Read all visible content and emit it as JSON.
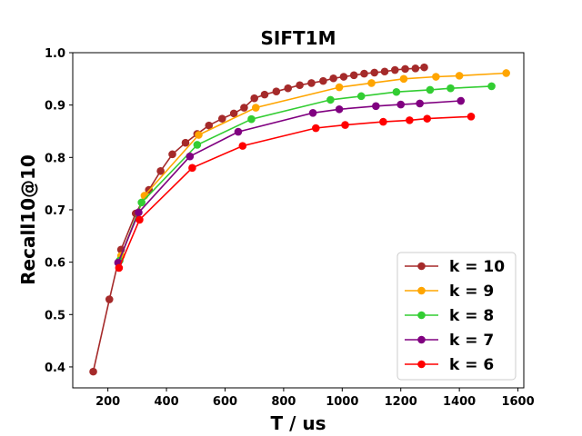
{
  "chart_data": {
    "type": "line",
    "title": "SIFT1M",
    "xlabel": "T / us",
    "ylabel": "Recall10@10",
    "xlim": [
      80,
      1620
    ],
    "ylim": [
      0.36,
      1.0
    ],
    "xticks": [
      200,
      400,
      600,
      800,
      1000,
      1200,
      1400,
      1600
    ],
    "yticks": [
      0.4,
      0.5,
      0.6,
      0.7,
      0.8,
      0.9,
      1.0
    ],
    "xtick_labels": [
      "200",
      "400",
      "600",
      "800",
      "1000",
      "1200",
      "1400",
      "1600"
    ],
    "ytick_labels": [
      "0.4",
      "0.5",
      "0.6",
      "0.7",
      "0.8",
      "0.9",
      "1.0"
    ],
    "grid": false,
    "legend_position": "lower-right",
    "series": [
      {
        "name": "k = 10",
        "color": "#a52a2a",
        "x": [
          150,
          205,
          245,
          295,
          340,
          380,
          420,
          465,
          505,
          545,
          590,
          630,
          665,
          700,
          735,
          775,
          815,
          855,
          895,
          935,
          970,
          1005,
          1040,
          1075,
          1110,
          1145,
          1180,
          1215,
          1250,
          1280
        ],
        "y": [
          0.391,
          0.529,
          0.624,
          0.693,
          0.738,
          0.774,
          0.806,
          0.828,
          0.845,
          0.861,
          0.874,
          0.884,
          0.895,
          0.913,
          0.92,
          0.926,
          0.932,
          0.938,
          0.942,
          0.946,
          0.951,
          0.954,
          0.957,
          0.96,
          0.962,
          0.964,
          0.967,
          0.969,
          0.97,
          0.972
        ]
      },
      {
        "name": "k = 9",
        "color": "#ffa500",
        "x": [
          245,
          325,
          510,
          705,
          990,
          1100,
          1210,
          1320,
          1400,
          1560
        ],
        "y": [
          0.612,
          0.727,
          0.843,
          0.895,
          0.934,
          0.942,
          0.95,
          0.954,
          0.956,
          0.961
        ]
      },
      {
        "name": "k = 8",
        "color": "#32cd32",
        "x": [
          240,
          315,
          505,
          690,
          960,
          1065,
          1185,
          1300,
          1370,
          1510
        ],
        "y": [
          0.603,
          0.714,
          0.824,
          0.873,
          0.91,
          0.917,
          0.925,
          0.929,
          0.932,
          0.936
        ]
      },
      {
        "name": "k = 7",
        "color": "#800080",
        "x": [
          235,
          305,
          480,
          645,
          900,
          990,
          1115,
          1200,
          1265,
          1405
        ],
        "y": [
          0.599,
          0.695,
          0.802,
          0.849,
          0.885,
          0.892,
          0.898,
          0.901,
          0.903,
          0.908
        ]
      },
      {
        "name": "k = 6",
        "color": "#ff0000",
        "x": [
          238,
          308,
          488,
          660,
          910,
          1010,
          1140,
          1230,
          1290,
          1440
        ],
        "y": [
          0.589,
          0.681,
          0.78,
          0.822,
          0.856,
          0.862,
          0.868,
          0.871,
          0.874,
          0.878
        ]
      }
    ]
  }
}
